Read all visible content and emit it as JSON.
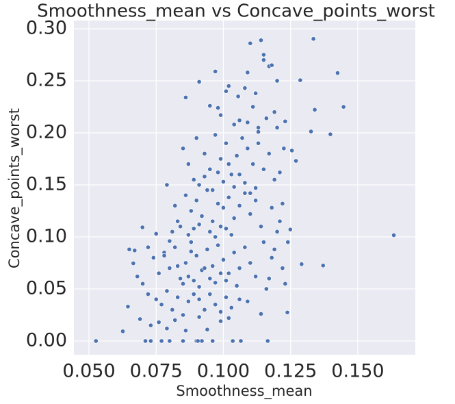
{
  "chart_data": {
    "type": "scatter",
    "title": "Smoothness_mean vs Concave_points_worst",
    "x_label": "Smoothness_mean",
    "y_label": "Concave_points_worst",
    "color": "#4c72b0",
    "grid": true,
    "xlim": [
      0.0444,
      0.1714
    ],
    "ylim": [
      -0.0132,
      0.3079
    ],
    "xticks": [
      {
        "value": 0.05,
        "label": "0.050"
      },
      {
        "value": 0.075,
        "label": "0.075"
      },
      {
        "value": 0.1,
        "label": "0.100"
      },
      {
        "value": 0.125,
        "label": "0.125"
      },
      {
        "value": 0.15,
        "label": "0.150"
      }
    ],
    "yticks": [
      {
        "value": 0,
        "label": "0.00"
      },
      {
        "value": 0.05,
        "label": "0.05"
      },
      {
        "value": 0.1,
        "label": "0.10"
      },
      {
        "value": 0.15,
        "label": "0.15"
      },
      {
        "value": 0.2,
        "label": "0.20"
      },
      {
        "value": 0.25,
        "label": "0.25"
      },
      {
        "value": 0.3,
        "label": "0.30"
      }
    ],
    "x": [
      0.1634,
      0.1447,
      0.1425,
      0.1398,
      0.1371,
      0.1335,
      0.134,
      0.1291,
      0.1326,
      0.1286,
      0.1238,
      0.1249,
      0.0526,
      0.0626,
      0.0645,
      0.0665,
      0.067,
      0.0699,
      0.071,
      0.073,
      0.077,
      0.08,
      0.085,
      0.09,
      0.092,
      0.096,
      0.1035,
      0.1065,
      0.1165,
      0.0905,
      0.114,
      0.11,
      0.115,
      0.117,
      0.097,
      0.109,
      0.115,
      0.12,
      0.118,
      0.102,
      0.091,
      0.086,
      0.101,
      0.1055,
      0.108,
      0.112,
      0.123,
      0.119,
      0.116,
      0.095,
      0.098,
      0.099,
      0.104,
      0.106,
      0.111,
      0.113,
      0.12,
      0.1255,
      0.127,
      0.1225,
      0.085,
      0.087,
      0.09,
      0.093,
      0.095,
      0.097,
      0.099,
      0.101,
      0.103,
      0.105,
      0.107,
      0.109,
      0.111,
      0.113,
      0.115,
      0.117,
      0.119,
      0.121,
      0.089,
      0.091,
      0.093,
      0.096,
      0.098,
      0.1,
      0.102,
      0.104,
      0.106,
      0.108,
      0.11,
      0.112,
      0.079,
      0.082,
      0.084,
      0.086,
      0.088,
      0.09,
      0.092,
      0.094,
      0.096,
      0.098,
      0.1,
      0.102,
      0.104,
      0.106,
      0.108,
      0.11,
      0.112,
      0.114,
      0.118,
      0.122,
      0.081,
      0.083,
      0.087,
      0.089,
      0.091,
      0.095,
      0.097,
      0.099,
      0.101,
      0.103,
      0.074,
      0.076,
      0.078,
      0.08,
      0.082,
      0.084,
      0.086,
      0.088,
      0.09,
      0.092,
      0.094,
      0.096,
      0.098,
      0.1,
      0.102,
      0.104,
      0.106,
      0.108,
      0.11,
      0.112,
      0.085,
      0.087,
      0.089,
      0.091,
      0.093,
      0.095,
      0.097,
      0.099,
      0.101,
      0.105,
      0.07,
      0.072,
      0.075,
      0.077,
      0.079,
      0.081,
      0.083,
      0.085,
      0.087,
      0.089,
      0.091,
      0.093,
      0.095,
      0.097,
      0.099,
      0.101,
      0.103,
      0.106,
      0.109,
      0.114,
      0.069,
      0.073,
      0.076,
      0.079,
      0.082,
      0.086,
      0.091,
      0.094,
      0.099,
      0.102,
      0.115,
      0.118,
      0.12,
      0.122,
      0.123,
      0.117,
      0.121,
      0.124,
      0.119,
      0.116,
      0.065,
      0.068,
      0.072,
      0.075,
      0.078,
      0.08,
      0.083,
      0.088,
      0.109,
      0.113
    ],
    "values": [
      0.1016,
      0.2249,
      0.2575,
      0.1986,
      0.0725,
      0.2903,
      0.2222,
      0.0738,
      0.2013,
      0.2506,
      0.0274,
      0.1071,
      0,
      0.0093,
      0.033,
      0.0746,
      0.087,
      0.1092,
      0,
      0,
      0,
      0,
      0,
      0,
      0,
      0,
      0,
      0,
      0,
      0,
      0.289,
      0.286,
      0.275,
      0.264,
      0.259,
      0.258,
      0.27,
      0.25,
      0.265,
      0.245,
      0.249,
      0.234,
      0.24,
      0.235,
      0.243,
      0.238,
      0.211,
      0.22,
      0.214,
      0.226,
      0.224,
      0.217,
      0.208,
      0.212,
      0.225,
      0.201,
      0.205,
      0.183,
      0.173,
      0.185,
      0.185,
      0.17,
      0.195,
      0.18,
      0.165,
      0.198,
      0.175,
      0.19,
      0.16,
      0.178,
      0.195,
      0.185,
      0.17,
      0.19,
      0.165,
      0.18,
      0.155,
      0.162,
      0.155,
      0.15,
      0.158,
      0.145,
      0.162,
      0.153,
      0.17,
      0.148,
      0.16,
      0.152,
      0.142,
      0.147,
      0.15,
      0.13,
      0.11,
      0.14,
      0.125,
      0.135,
      0.12,
      0.145,
      0.115,
      0.132,
      0.128,
      0.138,
      0.118,
      0.13,
      0.142,
      0.122,
      0.135,
      0.11,
      0.128,
      0.132,
      0.105,
      0.115,
      0.102,
      0.108,
      0.112,
      0.105,
      0.1,
      0.11,
      0.108,
      0.102,
      0.08,
      0.065,
      0.085,
      0.07,
      0.09,
      0.06,
      0.075,
      0.095,
      0.082,
      0.068,
      0.088,
      0.072,
      0.092,
      0.078,
      0.065,
      0.085,
      0.07,
      0.09,
      0.075,
      0.062,
      0.055,
      0.062,
      0.058,
      0.052,
      0.07,
      0.06,
      0.056,
      0.065,
      0.058,
      0.053,
      0.055,
      0.045,
      0.04,
      0.035,
      0.048,
      0.03,
      0.042,
      0.025,
      0.038,
      0.045,
      0.04,
      0.03,
      0.045,
      0.035,
      0.028,
      0.042,
      0.032,
      0.04,
      0.038,
      0.026,
      0.021,
      0.015,
      0.018,
      0.012,
      0.02,
      0.01,
      0.023,
      0.011,
      0.019,
      0.022,
      0.095,
      0.08,
      0.105,
      0.07,
      0.055,
      0.06,
      0.115,
      0.095,
      0.088,
      0.05,
      0.088,
      0.062,
      0.09,
      0.103,
      0.082,
      0.096,
      0.072,
      0.086,
      0.21,
      0.205
    ]
  }
}
